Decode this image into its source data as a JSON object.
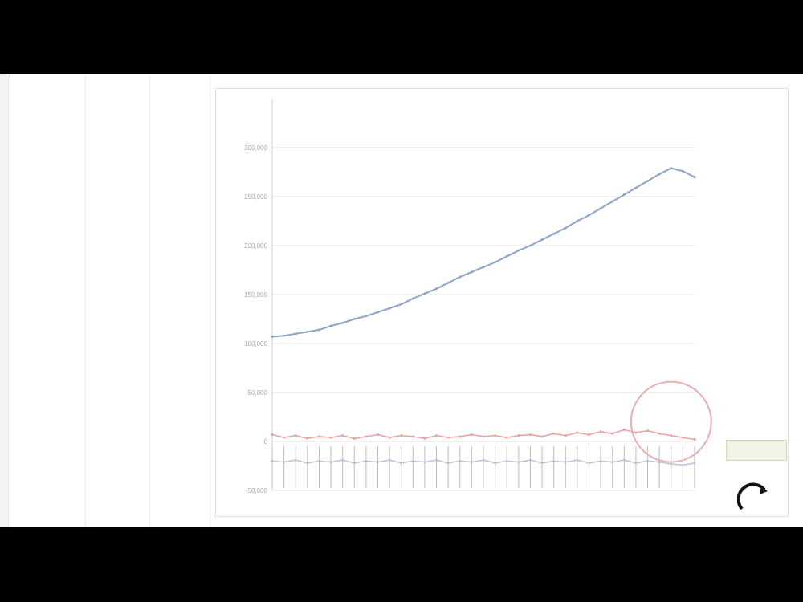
{
  "menu": [
    "",
    "",
    "",
    "",
    ""
  ],
  "grid": {
    "columns": [
      "",
      ""
    ],
    "col_a": [],
    "col_b": []
  },
  "chart_data": {
    "type": "line",
    "title": "",
    "xlabel": "",
    "ylabel": "",
    "ylim": [
      -50000,
      350000
    ],
    "yticks": [
      -50000,
      0,
      50000,
      100000,
      150000,
      200000,
      250000,
      300000
    ],
    "grid": true,
    "legend_position": "right",
    "series": [
      {
        "name": "",
        "color": "#8fa2c8",
        "x": [
          0,
          1,
          2,
          3,
          4,
          5,
          6,
          7,
          8,
          9,
          10,
          11,
          12,
          13,
          14,
          15,
          16,
          17,
          18,
          19,
          20,
          21,
          22,
          23,
          24,
          25,
          26,
          27,
          28,
          29,
          30,
          31,
          32,
          33,
          34,
          35,
          36
        ],
        "y": [
          107000,
          108000,
          110000,
          112000,
          114000,
          118000,
          121000,
          125000,
          128000,
          132000,
          136000,
          140000,
          146000,
          151000,
          156000,
          162000,
          168000,
          173000,
          178000,
          183000,
          189000,
          195000,
          200000,
          206000,
          212000,
          218000,
          225000,
          231000,
          238000,
          245000,
          252000,
          259000,
          266000,
          273000,
          279000,
          276000,
          270000
        ]
      },
      {
        "name": "",
        "color": "#e8a0a0",
        "x": [
          0,
          1,
          2,
          3,
          4,
          5,
          6,
          7,
          8,
          9,
          10,
          11,
          12,
          13,
          14,
          15,
          16,
          17,
          18,
          19,
          20,
          21,
          22,
          23,
          24,
          25,
          26,
          27,
          28,
          29,
          30,
          31,
          32,
          33,
          34,
          35,
          36
        ],
        "y": [
          7000,
          4000,
          6000,
          3000,
          5000,
          4000,
          6000,
          3000,
          5000,
          7000,
          4000,
          6000,
          5000,
          3000,
          6000,
          4000,
          5000,
          7000,
          5000,
          6000,
          4000,
          6000,
          7000,
          5000,
          8000,
          6000,
          9000,
          7000,
          10000,
          8000,
          12000,
          9000,
          11000,
          8000,
          6000,
          4000,
          2000
        ]
      },
      {
        "name": "",
        "color": "#b9c3d6",
        "x": [
          0,
          1,
          2,
          3,
          4,
          5,
          6,
          7,
          8,
          9,
          10,
          11,
          12,
          13,
          14,
          15,
          16,
          17,
          18,
          19,
          20,
          21,
          22,
          23,
          24,
          25,
          26,
          27,
          28,
          29,
          30,
          31,
          32,
          33,
          34,
          35,
          36
        ],
        "y": [
          -20000,
          -21000,
          -19000,
          -22000,
          -20000,
          -21000,
          -19000,
          -22000,
          -20000,
          -21000,
          -19000,
          -22000,
          -20000,
          -21000,
          -19000,
          -22000,
          -20000,
          -21000,
          -19000,
          -22000,
          -20000,
          -21000,
          -19000,
          -22000,
          -20000,
          -21000,
          -19000,
          -22000,
          -20000,
          -21000,
          -19000,
          -22000,
          -20000,
          -21000,
          -23000,
          -24000,
          -22000
        ]
      }
    ],
    "highlight_circle": {
      "x": 34,
      "y": 20000
    }
  },
  "tooltip": {
    "text": ""
  }
}
